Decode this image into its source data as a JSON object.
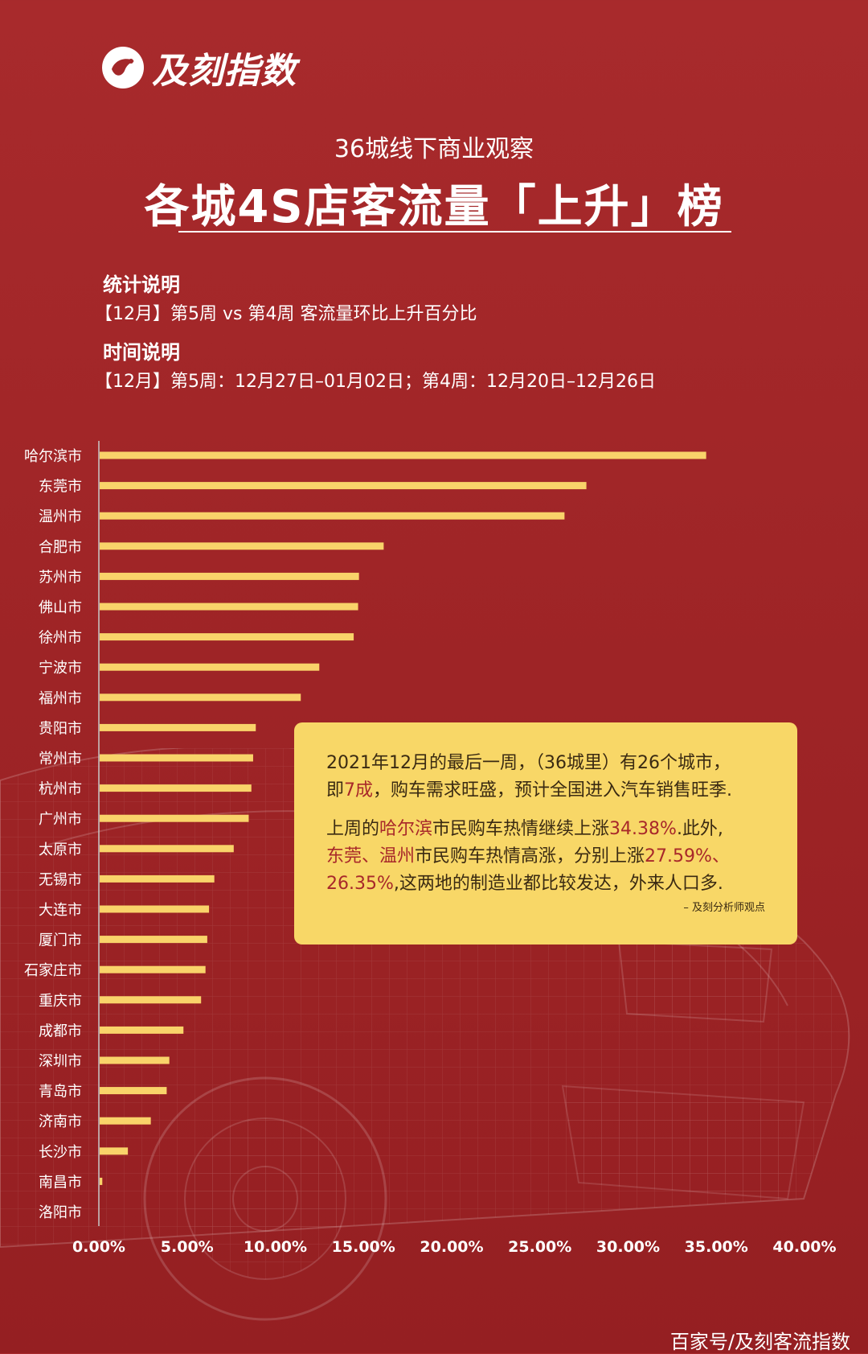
{
  "brand": {
    "name": "及刻指数"
  },
  "header": {
    "subtitle": "36城线下商业观察",
    "title": "各城4S店客流量「上升」榜"
  },
  "notes": {
    "stat_heading": "统计说明",
    "stat_text": "【12月】第5周 vs 第4周 客流量环比上升百分比",
    "time_heading": "时间说明",
    "time_text": "【12月】第5周：12月27日–01月02日；第4周：12月20日–12月26日"
  },
  "callout": {
    "p1_line1": "2021年12月的最后一周，（36城里）有26个城市，",
    "p1_line2_a": "即",
    "p1_line2_b": "7成",
    "p1_line2_c": "，购车需求旺盛，预计全国进入汽车销售旺季.",
    "p2_line1_a": "上周的",
    "p2_line1_b": "哈尔滨",
    "p2_line1_c": "市民购车热情继续上涨",
    "p2_line1_d": "34.38%",
    "p2_line1_e": ".此外,",
    "p2_line2_a": "东莞、温州",
    "p2_line2_b": "市民购车热情高涨，分别上涨",
    "p2_line2_c": "27.59%、",
    "p2_line3_a": "26.35%",
    "p2_line3_b": ",这两地的制造业都比较发达，外来人口多.",
    "attribution": "– 及刻分析师观点"
  },
  "footer": {
    "source": "百家号/及刻客流指数"
  },
  "colors": {
    "background": "#a32729",
    "bar": "#f9d36a",
    "callout": "#f8d767",
    "highlight": "#a8282a"
  },
  "chart_data": {
    "type": "bar",
    "orientation": "horizontal",
    "categories": [
      "哈尔滨市",
      "东莞市",
      "温州市",
      "合肥市",
      "苏州市",
      "佛山市",
      "徐州市",
      "宁波市",
      "福州市",
      "贵阳市",
      "常州市",
      "杭州市",
      "广州市",
      "太原市",
      "无锡市",
      "大连市",
      "厦门市",
      "石家庄市",
      "重庆市",
      "成都市",
      "深圳市",
      "青岛市",
      "济南市",
      "长沙市",
      "南昌市",
      "洛阳市"
    ],
    "values": [
      34.38,
      27.59,
      26.35,
      16.1,
      14.7,
      14.65,
      14.4,
      12.45,
      11.4,
      8.85,
      8.7,
      8.6,
      8.45,
      7.6,
      6.5,
      6.2,
      6.1,
      6.0,
      5.75,
      4.75,
      3.95,
      3.8,
      2.9,
      1.6,
      0.15,
      0.0
    ],
    "xticks": [
      "0.00%",
      "5.00%",
      "10.00%",
      "15.00%",
      "20.00%",
      "25.00%",
      "30.00%",
      "35.00%",
      "40.00%"
    ],
    "xlim": [
      0,
      40
    ],
    "xlabel": "",
    "ylabel": "",
    "grid": false
  }
}
